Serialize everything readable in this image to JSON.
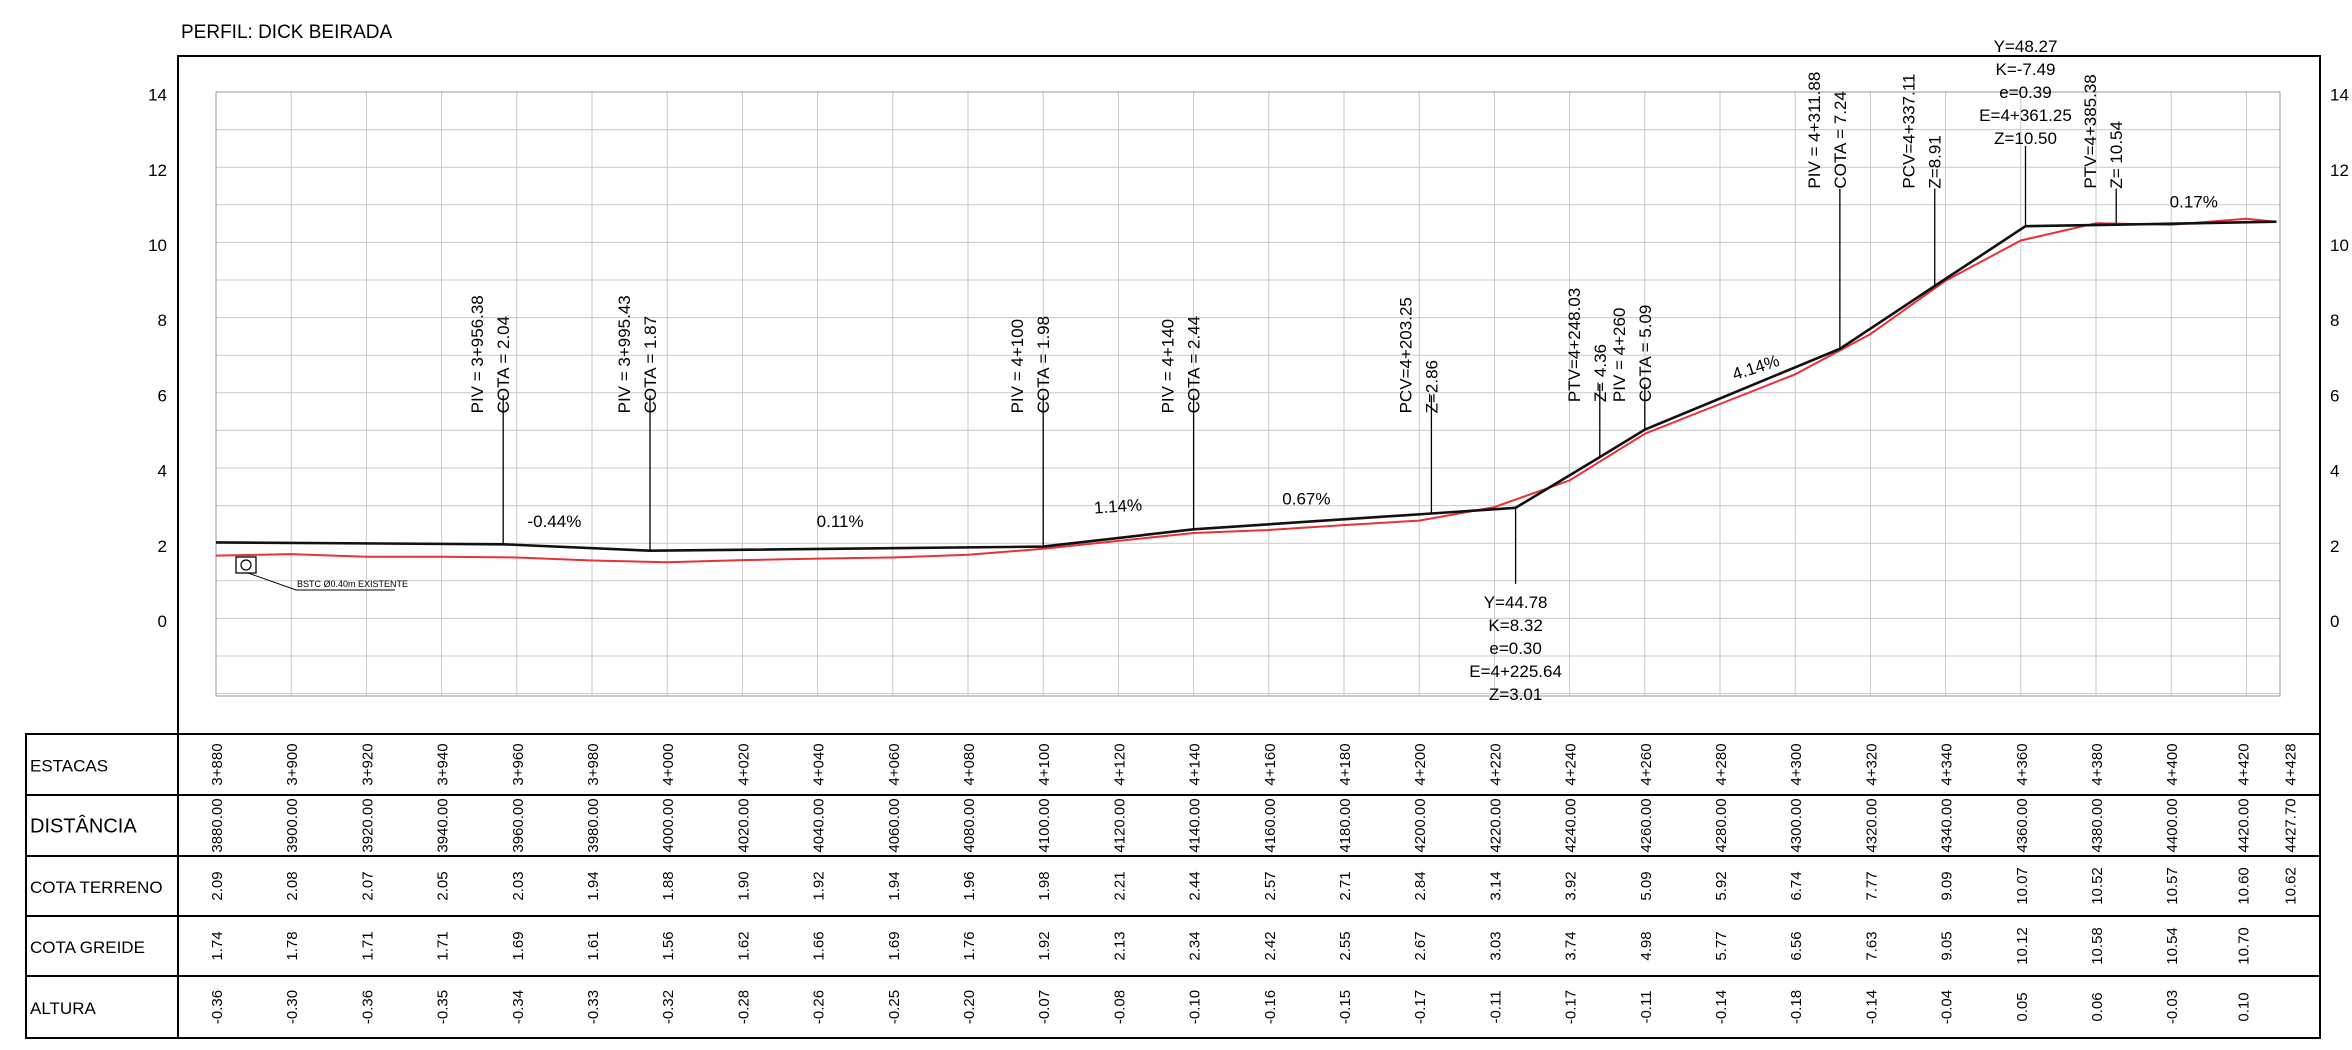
{
  "title": "PERFIL: DICK BEIRADA",
  "colors": {
    "terrain": "#e8303a",
    "grade": "#111111",
    "grid": "#c8c8c8",
    "frame": "#000000"
  },
  "chart_data": {
    "type": "line",
    "ylim": [
      -2,
      14
    ],
    "xlim": [
      3875,
      4428
    ],
    "y_ticks": [
      14,
      12,
      10,
      8,
      6,
      4,
      2,
      0
    ],
    "grid": true,
    "series": [
      {
        "key": "terrain",
        "x": [
          3880,
          3900,
          3920,
          3940,
          3960,
          3980,
          4000,
          4020,
          4040,
          4060,
          4080,
          4100,
          4120,
          4140,
          4160,
          4180,
          4200,
          4220,
          4240,
          4260,
          4280,
          4300,
          4320,
          4340,
          4360,
          4380,
          4400,
          4420,
          4427.7
        ],
        "values": [
          1.74,
          1.78,
          1.71,
          1.71,
          1.69,
          1.61,
          1.56,
          1.62,
          1.66,
          1.69,
          1.76,
          1.92,
          2.13,
          2.34,
          2.42,
          2.55,
          2.67,
          3.03,
          3.74,
          4.98,
          5.77,
          6.56,
          7.63,
          9.05,
          10.12,
          10.58,
          10.54,
          10.7,
          10.62
        ]
      },
      {
        "key": "grade",
        "x": [
          3880,
          3956.38,
          3995.43,
          4100,
          4140,
          4203.25,
          4225.64,
          4248.03,
          4260,
          4311.88,
          4337.11,
          4361.25,
          4385.38,
          4428
        ],
        "values": [
          2.09,
          2.04,
          1.87,
          1.98,
          2.44,
          2.86,
          3.01,
          4.36,
          5.09,
          7.24,
          8.91,
          10.5,
          10.54,
          10.62
        ]
      }
    ],
    "callouts": [
      {
        "x": 3956.38,
        "lines": [
          "PIV = 3+956.38",
          "COTA = 2.04"
        ]
      },
      {
        "x": 3995.43,
        "lines": [
          "PIV = 3+995.43",
          "COTA = 1.87"
        ]
      },
      {
        "x": 4100,
        "lines": [
          "PIV = 4+100",
          "COTA = 1.98"
        ]
      },
      {
        "x": 4140,
        "lines": [
          "PIV = 4+140",
          "COTA = 2.44"
        ]
      },
      {
        "x": 4203.25,
        "lines": [
          "PCV=4+203.25",
          "Z=2.86"
        ]
      },
      {
        "x": 4248.03,
        "lines": [
          "PTV=4+248.03",
          "Z= 4.36"
        ]
      },
      {
        "x": 4260,
        "lines": [
          "PIV = 4+260",
          "COTA = 5.09"
        ]
      },
      {
        "x": 4311.88,
        "lines": [
          "PIV = 4+311.88",
          "COTA = 7.24"
        ]
      },
      {
        "x": 4337.11,
        "lines": [
          "PCV=4+337.11",
          "Z=8.91"
        ]
      },
      {
        "x": 4385.38,
        "lines": [
          "PTV=4+385.38",
          "Z= 10.54"
        ]
      }
    ],
    "curves": [
      {
        "x": 4225.64,
        "lines": [
          "Y=44.78",
          "K=8.32",
          "e=0.30",
          "E=4+225.64",
          "Z=3.01"
        ]
      },
      {
        "x": 4361.25,
        "lines": [
          "Y=48.27",
          "K=-7.49",
          "e=0.39",
          "E=4+361.25",
          "Z=10.50"
        ]
      }
    ],
    "slopes": [
      {
        "x": 3970,
        "y": 2.5,
        "label": "-0.44%"
      },
      {
        "x": 4046,
        "y": 2.5,
        "label": "0.11%"
      },
      {
        "x": 4120,
        "y": 2.9,
        "label": "1.14%"
      },
      {
        "x": 4170,
        "y": 3.1,
        "label": "0.67%"
      },
      {
        "x": 4290,
        "y": 6.6,
        "label": "4.14%"
      },
      {
        "x": 4406,
        "y": 11.0,
        "label": "0.17%"
      }
    ],
    "existing_note": "BSTC Ø0.40m EXISTENTE"
  },
  "table": {
    "labels": [
      "ESTACAS",
      "DISTÂNCIA",
      "COTA TERRENO",
      "COTA GREIDE",
      "ALTURA"
    ],
    "columns": [
      {
        "x": 3880,
        "estaca": "3+880",
        "dist": "3880.00",
        "terreno": "2.09",
        "greide": "1.74",
        "altura": "-0.36"
      },
      {
        "x": 3900,
        "estaca": "3+900",
        "dist": "3900.00",
        "terreno": "2.08",
        "greide": "1.78",
        "altura": "-0.30"
      },
      {
        "x": 3920,
        "estaca": "3+920",
        "dist": "3920.00",
        "terreno": "2.07",
        "greide": "1.71",
        "altura": "-0.36"
      },
      {
        "x": 3940,
        "estaca": "3+940",
        "dist": "3940.00",
        "terreno": "2.05",
        "greide": "1.71",
        "altura": "-0.35"
      },
      {
        "x": 3960,
        "estaca": "3+960",
        "dist": "3960.00",
        "terreno": "2.03",
        "greide": "1.69",
        "altura": "-0.34"
      },
      {
        "x": 3980,
        "estaca": "3+980",
        "dist": "3980.00",
        "terreno": "1.94",
        "greide": "1.61",
        "altura": "-0.33"
      },
      {
        "x": 4000,
        "estaca": "4+000",
        "dist": "4000.00",
        "terreno": "1.88",
        "greide": "1.56",
        "altura": "-0.32"
      },
      {
        "x": 4020,
        "estaca": "4+020",
        "dist": "4020.00",
        "terreno": "1.90",
        "greide": "1.62",
        "altura": "-0.28"
      },
      {
        "x": 4040,
        "estaca": "4+040",
        "dist": "4040.00",
        "terreno": "1.92",
        "greide": "1.66",
        "altura": "-0.26"
      },
      {
        "x": 4060,
        "estaca": "4+060",
        "dist": "4060.00",
        "terreno": "1.94",
        "greide": "1.69",
        "altura": "-0.25"
      },
      {
        "x": 4080,
        "estaca": "4+080",
        "dist": "4080.00",
        "terreno": "1.96",
        "greide": "1.76",
        "altura": "-0.20"
      },
      {
        "x": 4100,
        "estaca": "4+100",
        "dist": "4100.00",
        "terreno": "1.98",
        "greide": "1.92",
        "altura": "-0.07"
      },
      {
        "x": 4120,
        "estaca": "4+120",
        "dist": "4120.00",
        "terreno": "2.21",
        "greide": "2.13",
        "altura": "-0.08"
      },
      {
        "x": 4140,
        "estaca": "4+140",
        "dist": "4140.00",
        "terreno": "2.44",
        "greide": "2.34",
        "altura": "-0.10"
      },
      {
        "x": 4160,
        "estaca": "4+160",
        "dist": "4160.00",
        "terreno": "2.57",
        "greide": "2.42",
        "altura": "-0.16"
      },
      {
        "x": 4180,
        "estaca": "4+180",
        "dist": "4180.00",
        "terreno": "2.71",
        "greide": "2.55",
        "altura": "-0.15"
      },
      {
        "x": 4200,
        "estaca": "4+200",
        "dist": "4200.00",
        "terreno": "2.84",
        "greide": "2.67",
        "altura": "-0.17"
      },
      {
        "x": 4220,
        "estaca": "4+220",
        "dist": "4220.00",
        "terreno": "3.14",
        "greide": "3.03",
        "altura": "-0.11"
      },
      {
        "x": 4240,
        "estaca": "4+240",
        "dist": "4240.00",
        "terreno": "3.92",
        "greide": "3.74",
        "altura": "-0.17"
      },
      {
        "x": 4260,
        "estaca": "4+260",
        "dist": "4260.00",
        "terreno": "5.09",
        "greide": "4.98",
        "altura": "-0.11"
      },
      {
        "x": 4280,
        "estaca": "4+280",
        "dist": "4280.00",
        "terreno": "5.92",
        "greide": "5.77",
        "altura": "-0.14"
      },
      {
        "x": 4300,
        "estaca": "4+300",
        "dist": "4300.00",
        "terreno": "6.74",
        "greide": "6.56",
        "altura": "-0.18"
      },
      {
        "x": 4320,
        "estaca": "4+320",
        "dist": "4320.00",
        "terreno": "7.77",
        "greide": "7.63",
        "altura": "-0.14"
      },
      {
        "x": 4340,
        "estaca": "4+340",
        "dist": "4340.00",
        "terreno": "9.09",
        "greide": "9.05",
        "altura": "-0.04"
      },
      {
        "x": 4360,
        "estaca": "4+360",
        "dist": "4360.00",
        "terreno": "10.07",
        "greide": "10.12",
        "altura": "0.05"
      },
      {
        "x": 4380,
        "estaca": "4+380",
        "dist": "4380.00",
        "terreno": "10.52",
        "greide": "10.58",
        "altura": "0.06"
      },
      {
        "x": 4400,
        "estaca": "4+400",
        "dist": "4400.00",
        "terreno": "10.57",
        "greide": "10.54",
        "altura": "-0.03"
      },
      {
        "x": 4420,
        "estaca": "4+420",
        "dist": "4420.00",
        "terreno": "10.60",
        "greide": "10.70",
        "altura": "0.10"
      },
      {
        "x": 4427.7,
        "estaca": "4+428",
        "dist": "4427.70",
        "terreno": "10.62",
        "greide": "",
        "altura": ""
      }
    ]
  }
}
